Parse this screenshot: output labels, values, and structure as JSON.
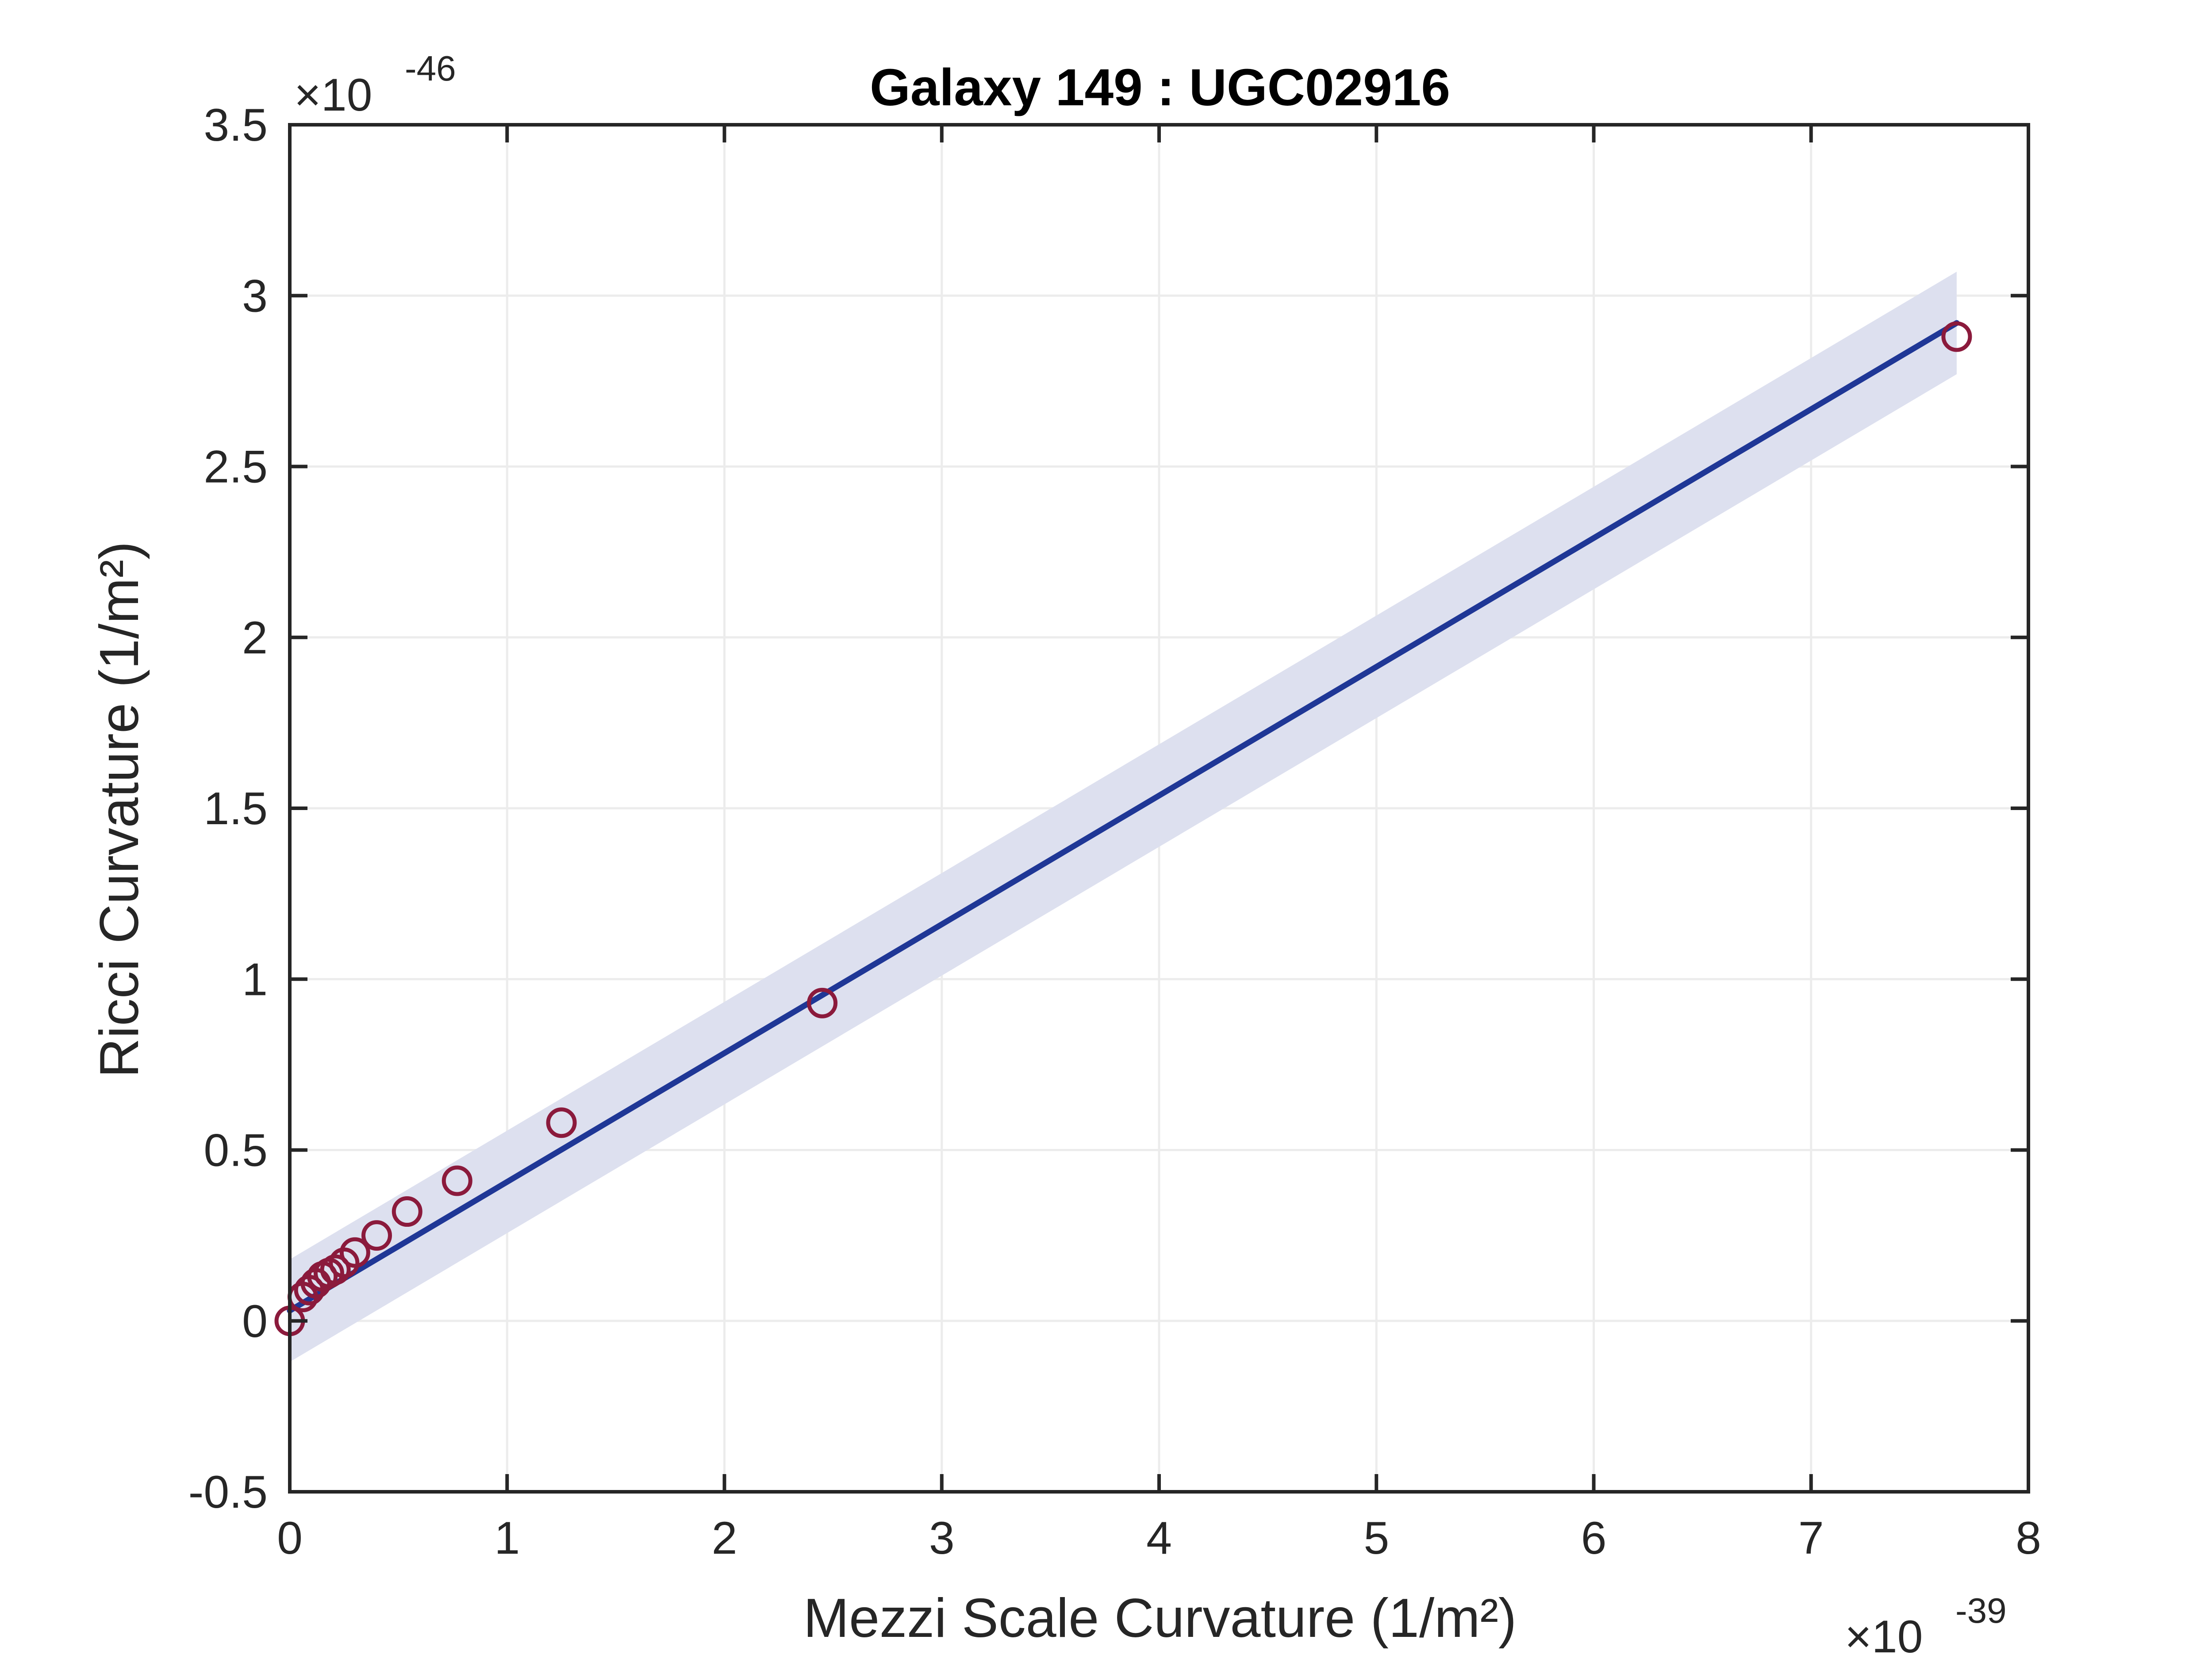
{
  "chart_data": {
    "type": "scatter",
    "title": "Galaxy 149 : UGC02916",
    "xlabel": "Mezzi Scale Curvature (1/m²)",
    "ylabel": "Ricci Curvature (1/m²)",
    "x_multiplier": "×10",
    "x_multiplier_exp": "-39",
    "y_multiplier": "×10",
    "y_multiplier_exp": "-46",
    "xlim": [
      0,
      8
    ],
    "ylim": [
      -0.5,
      3.5
    ],
    "xticks": [
      0,
      1,
      2,
      3,
      4,
      5,
      6,
      7,
      8
    ],
    "xtick_labels": [
      "0",
      "1",
      "2",
      "3",
      "4",
      "5",
      "6",
      "7",
      "8"
    ],
    "yticks": [
      -0.5,
      0,
      0.5,
      1,
      1.5,
      2,
      2.5,
      3,
      3.5
    ],
    "ytick_labels": [
      "-0.5",
      "0",
      "0.5",
      "1",
      "1.5",
      "2",
      "2.5",
      "3",
      "3.5"
    ],
    "grid": true,
    "colors": {
      "points": "#8b1a3c",
      "fit_line": "#1f3796",
      "band": "#dde0ef",
      "axes": "#262626",
      "grid": "#ececec"
    },
    "series": [
      {
        "type": "scatter",
        "x": [
          0.0,
          0.06,
          0.09,
          0.12,
          0.15,
          0.18,
          0.21,
          0.25,
          0.3,
          0.4,
          0.54,
          0.77,
          1.25,
          2.45,
          7.67
        ],
        "y": [
          0.0,
          0.07,
          0.09,
          0.11,
          0.13,
          0.14,
          0.15,
          0.17,
          0.2,
          0.25,
          0.32,
          0.41,
          0.58,
          0.93,
          2.88
        ]
      },
      {
        "type": "line",
        "x": [
          0.0,
          7.67
        ],
        "y": [
          0.03,
          2.92
        ]
      },
      {
        "type": "band",
        "x": [
          0.0,
          7.67
        ],
        "y_lower": [
          -0.12,
          2.77
        ],
        "y_upper": [
          0.18,
          3.07
        ]
      }
    ]
  }
}
